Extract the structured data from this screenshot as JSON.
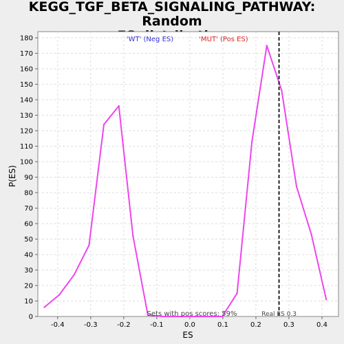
{
  "chart_data": {
    "type": "line",
    "title_lines": [
      "KEGG_TGF_BETA_SIGNALING_PATHWAY: Random",
      "ES distribution"
    ],
    "xlabel": "ES",
    "ylabel": "P(ES)",
    "xlim": [
      -0.46,
      0.45
    ],
    "ylim": [
      0,
      184
    ],
    "x_ticks": [
      -0.4,
      -0.3,
      -0.2,
      -0.1,
      0.0,
      0.1,
      0.2,
      0.3,
      0.4
    ],
    "x_tick_labels": [
      "-0.4",
      "-0.3",
      "-0.2",
      "-0.1",
      "0.0",
      "0.1",
      "0.2",
      "0.3",
      "0.4"
    ],
    "y_ticks": [
      0,
      10,
      20,
      30,
      40,
      50,
      60,
      70,
      80,
      90,
      100,
      110,
      120,
      130,
      140,
      150,
      160,
      170,
      180
    ],
    "y_tick_labels": [
      "0",
      "10",
      "20",
      "30",
      "40",
      "50",
      "60",
      "70",
      "80",
      "90",
      "100",
      "110",
      "120",
      "130",
      "140",
      "150",
      "160",
      "170",
      "180"
    ],
    "grid": true,
    "series": [
      {
        "color": "#ee44ee",
        "x": [
          -0.44,
          -0.395,
          -0.35,
          -0.305,
          -0.26,
          -0.215,
          -0.172,
          -0.127,
          -0.082,
          -0.037,
          0.008,
          0.053,
          0.098,
          0.143,
          0.188,
          0.233,
          0.278,
          0.323,
          0.368,
          0.413
        ],
        "y": [
          6,
          14,
          27,
          46,
          124,
          136,
          52,
          1,
          0,
          0,
          0,
          0,
          0,
          15,
          113,
          175,
          146,
          84,
          53,
          11
        ]
      }
    ],
    "legend_entries": [
      {
        "label": "'WT' (Neg ES)",
        "color": "#3333cc"
      },
      {
        "label": "'MUT' (Pos ES)",
        "color": "#dd2222"
      }
    ],
    "real_es": {
      "x": 0.27,
      "label": "Real ES 0.3"
    },
    "pos_scores_text": "Sets with pos scores: 59%"
  }
}
